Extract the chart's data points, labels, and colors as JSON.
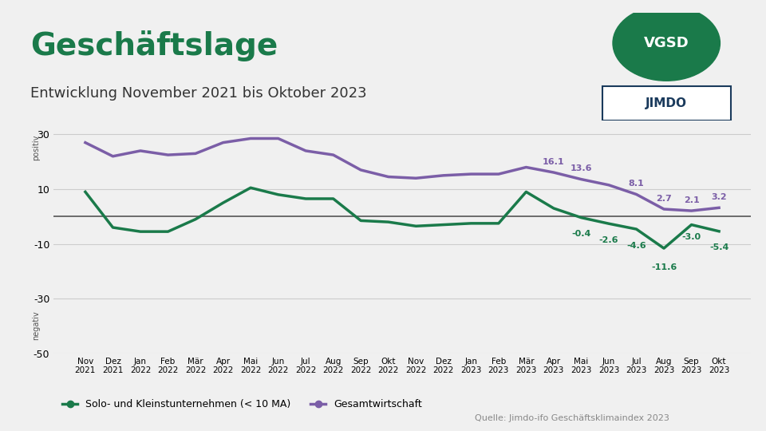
{
  "title": "Geschäftslage",
  "subtitle": "Entwicklung November 2021 bis Oktober 2023",
  "background_color": "#f0f0f0",
  "plot_bg_color": "#f0f0f0",
  "x_labels": [
    "Nov\n2021",
    "Dez\n2021",
    "Jan\n2022",
    "Feb\n2022",
    "Mär\n2022",
    "Apr\n2022",
    "Mai\n2022",
    "Jun\n2022",
    "Jul\n2022",
    "Aug\n2022",
    "Sep\n2022",
    "Okt\n2022",
    "Nov\n2022",
    "Dez\n2022",
    "Jan\n2023",
    "Feb\n2023",
    "Mär\n2023",
    "Apr\n2023",
    "Mai\n2023",
    "Jun\n2023",
    "Jul\n2023",
    "Aug\n2023",
    "Sep\n2023",
    "Okt\n2023"
  ],
  "solo_values": [
    9.0,
    -4.0,
    -5.5,
    -5.5,
    -1.0,
    5.0,
    10.5,
    8.0,
    6.5,
    6.5,
    -1.5,
    -2.0,
    -3.5,
    -3.0,
    -2.5,
    -2.5,
    9.0,
    3.0,
    -0.4,
    -2.6,
    -4.6,
    -11.6,
    -3.0,
    -5.4
  ],
  "gesamt_values": [
    27.0,
    22.0,
    24.0,
    22.5,
    23.0,
    27.0,
    28.5,
    28.5,
    24.0,
    22.5,
    17.0,
    14.5,
    14.0,
    15.0,
    15.5,
    15.5,
    18.0,
    16.1,
    13.6,
    11.5,
    8.1,
    2.7,
    2.1,
    3.2
  ],
  "solo_color": "#1a7a4a",
  "gesamt_color": "#7b5ea7",
  "zero_line_color": "#555555",
  "grid_color": "#cccccc",
  "annotated_solo_indices": [
    18,
    19,
    20,
    21,
    22,
    23
  ],
  "annotated_solo_values": [
    -0.4,
    -2.6,
    -4.6,
    -11.6,
    -3.0,
    -5.4
  ],
  "annotated_gesamt_indices": [
    17,
    18,
    20,
    21,
    22,
    23
  ],
  "annotated_gesamt_values": [
    16.1,
    13.6,
    8.1,
    2.7,
    2.1,
    3.2
  ],
  "ylim": [
    -50,
    35
  ],
  "yticks": [
    -50,
    -30,
    -10,
    10,
    30
  ],
  "positiv_label": "positiv",
  "negativ_label": "negativ",
  "legend_solo": "Solo- und Kleinstunternehmen (< 10 MA)",
  "legend_gesamt": "Gesamtwirtschaft",
  "source_text": "Quelle: Jimdo-ifo Geschäftsklimaindex 2023",
  "title_color": "#1a7a4a",
  "title_fontsize": 28,
  "subtitle_fontsize": 13
}
